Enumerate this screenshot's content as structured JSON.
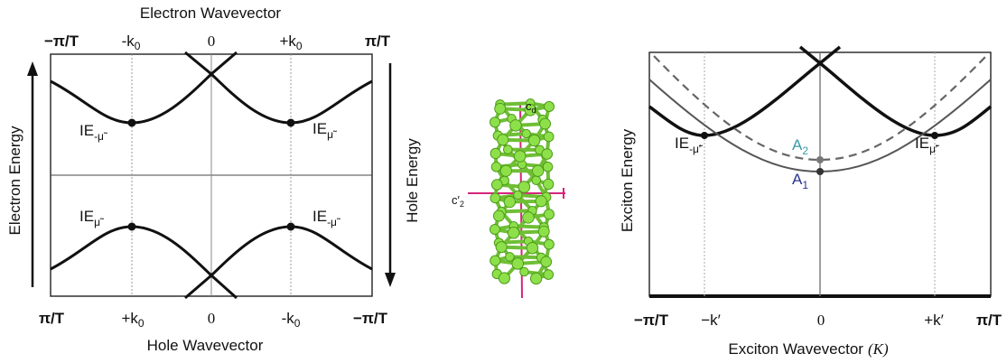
{
  "left_panel": {
    "top_axis_title": "Electron Wavevector",
    "bottom_axis_title": "Hole Wavevector",
    "left_axis_title": "Electron Energy",
    "right_axis_title": "Hole Energy",
    "top_ticks": [
      "−π/T",
      "-k",
      "0",
      "+k",
      "π/T"
    ],
    "top_tick_subscripts": [
      "",
      "0",
      "",
      "0",
      ""
    ],
    "bottom_ticks": [
      "π/T",
      "+k",
      "0",
      "-k",
      "−π/T"
    ],
    "bottom_tick_subscripts": [
      "",
      "0",
      "",
      "0",
      ""
    ],
    "upper_labels": [
      {
        "main": "IE",
        "sub": "-μ̃"
      },
      {
        "main": "IE",
        "sub": "μ̃"
      }
    ],
    "lower_labels": [
      {
        "main": "IE",
        "sub": "μ̃"
      },
      {
        "main": "IE",
        "sub": "-μ̃"
      }
    ]
  },
  "molecule": {
    "axis_top_label": "c",
    "axis_top_sub": "d",
    "axis_side_label": "c′",
    "axis_side_sub": "2",
    "colors": {
      "atom": "#8ee04a",
      "atom_edge": "#4c9a1a",
      "axis": "#d6257c"
    }
  },
  "right_panel": {
    "x_axis_title": "Exciton Wavevector",
    "x_axis_symbol": "(K)",
    "y_axis_title": "Exciton Energy",
    "ticks": [
      "−π/T",
      "−k′",
      "0",
      "+k′",
      "π/T"
    ],
    "labels": [
      {
        "main": "IE",
        "sub": "-μ̃′"
      },
      {
        "main": "IE",
        "sub": "μ̃′"
      }
    ],
    "A2": {
      "main": "A",
      "sub": "2",
      "color": "#3a9aa8"
    },
    "A1": {
      "main": "A",
      "sub": "1",
      "color": "#2a3590"
    }
  }
}
